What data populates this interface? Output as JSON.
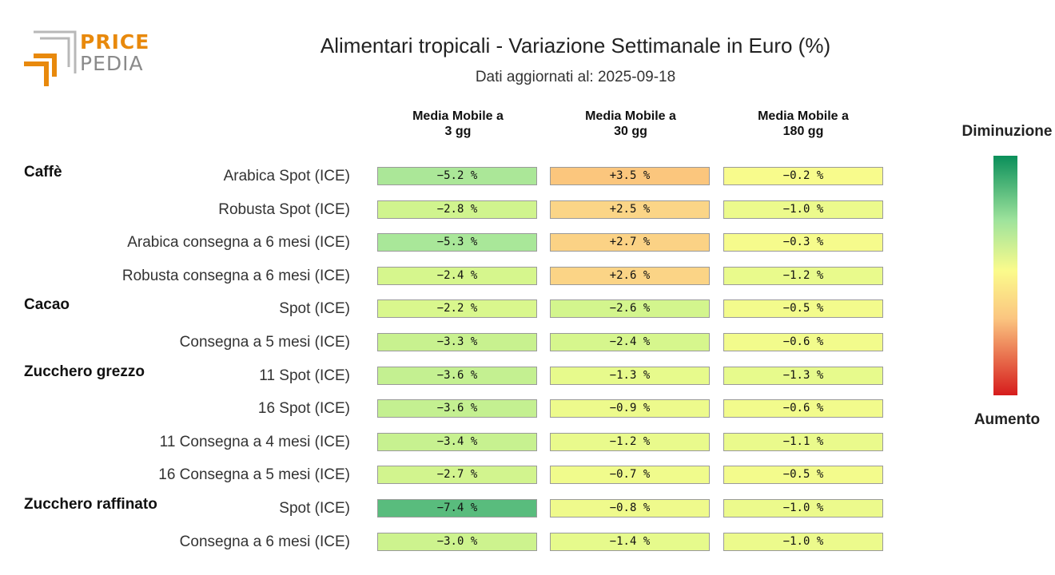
{
  "logo": {
    "line1": "PRICE",
    "line2": "PEDIA"
  },
  "title": "Alimentari tropicali - Variazione Settimanale in Euro (%)",
  "subtitle": "Dati aggiornati al: 2025-09-18",
  "chart_data": {
    "type": "heatmap",
    "columns": [
      "Media Mobile a\n3 gg",
      "Media Mobile a\n30 gg",
      "Media Mobile a\n180 gg"
    ],
    "groups": [
      {
        "name": "Caffè",
        "rows": [
          {
            "label": "Arabica Spot (ICE)",
            "values": [
              -5.2,
              3.5,
              -0.2
            ]
          },
          {
            "label": "Robusta Spot (ICE)",
            "values": [
              -2.8,
              2.5,
              -1.0
            ]
          },
          {
            "label": "Arabica consegna a 6 mesi (ICE)",
            "values": [
              -5.3,
              2.7,
              -0.3
            ]
          },
          {
            "label": "Robusta consegna a 6 mesi (ICE)",
            "values": [
              -2.4,
              2.6,
              -1.2
            ]
          }
        ]
      },
      {
        "name": "Cacao",
        "rows": [
          {
            "label": "Spot (ICE)",
            "values": [
              -2.2,
              -2.6,
              -0.5
            ]
          },
          {
            "label": "Consegna a 5 mesi (ICE)",
            "values": [
              -3.3,
              -2.4,
              -0.6
            ]
          }
        ]
      },
      {
        "name": "Zucchero grezzo",
        "rows": [
          {
            "label": "11 Spot (ICE)",
            "values": [
              -3.6,
              -1.3,
              -1.3
            ]
          },
          {
            "label": "16 Spot (ICE)",
            "values": [
              -3.6,
              -0.9,
              -0.6
            ]
          },
          {
            "label": "11 Consegna a 4 mesi (ICE)",
            "values": [
              -3.4,
              -1.2,
              -1.1
            ]
          },
          {
            "label": "16 Consegna a 5 mesi (ICE)",
            "values": [
              -2.7,
              -0.7,
              -0.5
            ]
          }
        ]
      },
      {
        "name": "Zucchero raffinato",
        "rows": [
          {
            "label": "Spot (ICE)",
            "values": [
              -7.4,
              -0.8,
              -1.0
            ]
          },
          {
            "label": "Consegna a 6 mesi (ICE)",
            "values": [
              -3.0,
              -1.4,
              -1.0
            ]
          }
        ]
      }
    ],
    "value_suffix": " %",
    "colorbar": {
      "top_label": "Diminuzione",
      "bottom_label": "Aumento"
    }
  }
}
